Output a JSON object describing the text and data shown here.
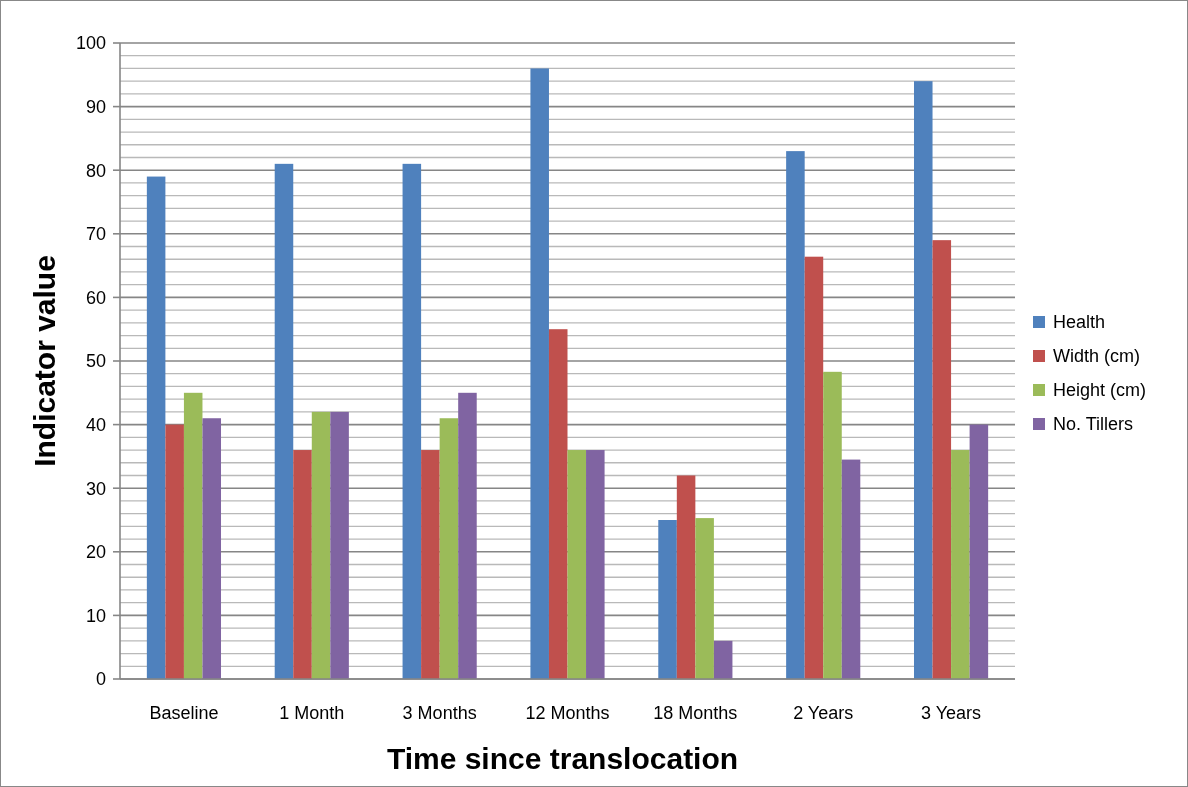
{
  "chart_data": {
    "type": "bar",
    "xlabel": "Time since translocation",
    "ylabel": "Indicator value",
    "categories": [
      "Baseline",
      "1 Month",
      "3 Months",
      "12 Months",
      "18 Months",
      "2 Years",
      "3 Years"
    ],
    "series": [
      {
        "name": "Health",
        "color": "#4f81bd",
        "values": [
          79,
          81,
          81,
          96,
          25,
          83,
          94
        ]
      },
      {
        "name": "Width (cm)",
        "color": "#c0504d",
        "values": [
          40,
          36,
          36,
          55,
          32,
          66.4,
          69
        ]
      },
      {
        "name": "Height (cm)",
        "color": "#9bbb59",
        "values": [
          45,
          42,
          41,
          36,
          25.3,
          48.3,
          36
        ]
      },
      {
        "name": "No. Tillers",
        "color": "#8064a2",
        "values": [
          41,
          42,
          45,
          36,
          6,
          34.5,
          40
        ]
      }
    ],
    "ylim": [
      0,
      100
    ],
    "yticks": [
      0,
      {
        "value": 2,
        "label": null
      },
      {
        "value": 4,
        "label": null
      },
      {
        "value": 6,
        "label": null
      },
      {
        "value": 8,
        "label": null
      },
      10,
      {
        "value": 12,
        "label": null
      },
      {
        "value": 14,
        "label": null
      },
      {
        "value": 16,
        "label": null
      },
      {
        "value": 18,
        "label": null
      },
      20,
      {
        "value": 22,
        "label": null
      },
      {
        "value": 24,
        "label": null
      },
      {
        "value": 26,
        "label": null
      },
      {
        "value": 28,
        "label": null
      },
      30,
      {
        "value": 32,
        "label": null
      },
      {
        "value": 34,
        "label": null
      },
      {
        "value": 36,
        "label": null
      },
      {
        "value": 38,
        "label": null
      },
      40,
      {
        "value": 42,
        "label": null
      },
      {
        "value": 44,
        "label": null
      },
      {
        "value": 46,
        "label": null
      },
      {
        "value": 48,
        "label": null
      },
      50,
      {
        "value": 52,
        "label": null
      },
      {
        "value": 54,
        "label": null
      },
      {
        "value": 56,
        "label": null
      },
      {
        "value": 58,
        "label": null
      },
      60,
      {
        "value": 62,
        "label": null
      },
      {
        "value": 64,
        "label": null
      },
      {
        "value": 66,
        "label": null
      },
      {
        "value": 68,
        "label": null
      },
      70,
      {
        "value": 72,
        "label": null
      },
      {
        "value": 74,
        "label": null
      },
      {
        "value": 76,
        "label": null
      },
      {
        "value": 78,
        "label": null
      },
      80,
      {
        "value": 82,
        "label": null
      },
      {
        "value": 84,
        "label": null
      },
      {
        "value": 86,
        "label": null
      },
      {
        "value": 88,
        "label": null
      },
      90,
      {
        "value": 92,
        "label": null
      },
      {
        "value": 94,
        "label": null
      },
      {
        "value": 96,
        "label": null
      },
      {
        "value": 98,
        "label": null
      },
      100
    ],
    "grid": "y",
    "legend": "right"
  }
}
